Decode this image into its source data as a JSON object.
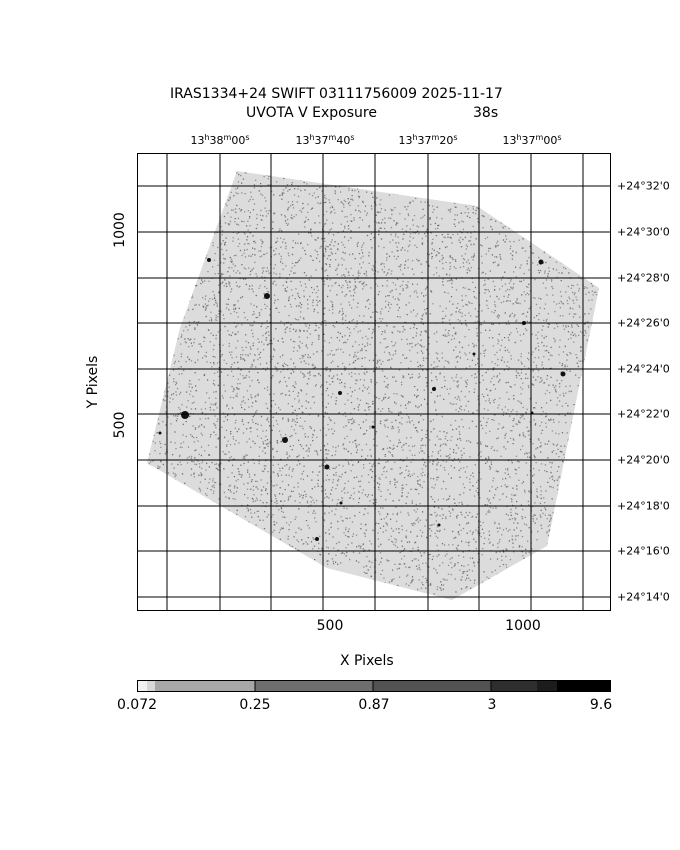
{
  "title": {
    "line1": "IRAS1334+24 SWIFT 03111756009 2025-11-17",
    "line2_left": "UVOTA V Exposure",
    "line2_right": "38s"
  },
  "axes": {
    "xlabel": "X Pixels",
    "ylabel": "Y Pixels",
    "x_ticks": [
      "500",
      "1000"
    ],
    "y_ticks": [
      "500",
      "1000"
    ],
    "ra_ticks": [
      {
        "h": "13",
        "m": "38",
        "s": "00"
      },
      {
        "h": "13",
        "m": "37",
        "s": "40"
      },
      {
        "h": "13",
        "m": "37",
        "s": "20"
      },
      {
        "h": "13",
        "m": "37",
        "s": "00"
      }
    ],
    "dec_ticks": [
      "+24°32'0",
      "+24°30'0",
      "+24°28'0",
      "+24°26'0",
      "+24°24'0",
      "+24°22'0",
      "+24°20'0",
      "+24°18'0",
      "+24°16'0",
      "+24°14'0"
    ],
    "ra_unit_labels": {
      "h": "h",
      "m": "m",
      "s": "s"
    }
  },
  "colorbar": {
    "scale": "log",
    "ticks": [
      "0.072",
      "0.25",
      "0.87",
      "3",
      "9.6"
    ]
  },
  "colors": {
    "background": "#ffffff",
    "grid": "#000000",
    "image_pixels": "#8c8c8c"
  }
}
